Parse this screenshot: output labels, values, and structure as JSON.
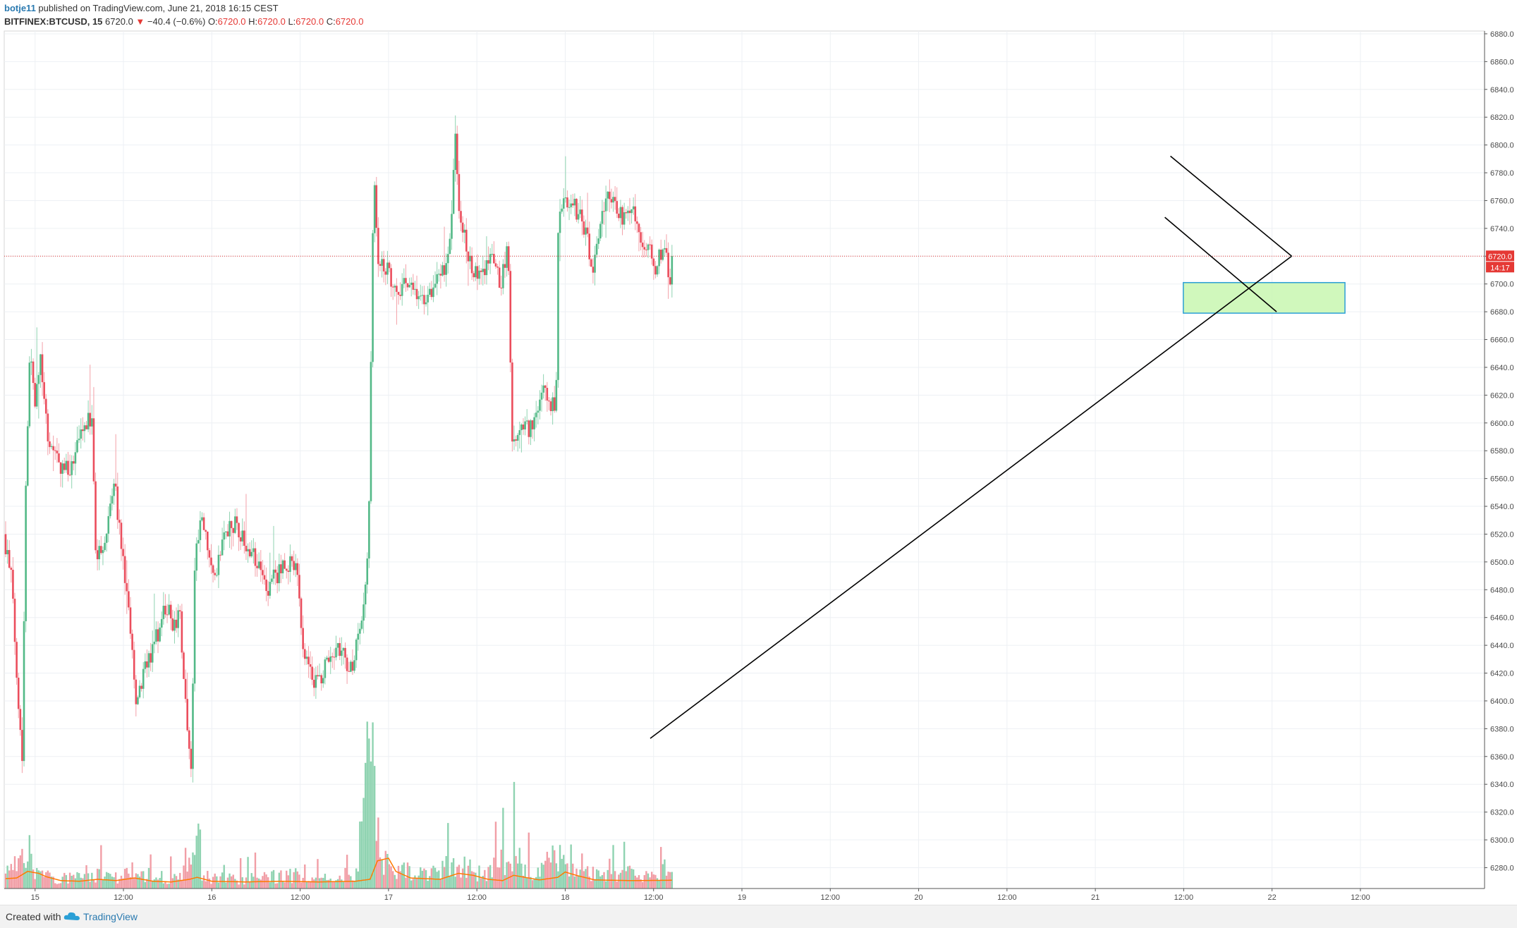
{
  "header": {
    "author": "botje11",
    "published": "published on TradingView.com, June 21, 2018 16:15 CEST",
    "symbol": "BITFINEX:BTCUSD, 15",
    "price": "6720.0",
    "arrow": "▼",
    "change": "−40.4 (−0.6%)",
    "open_label": "O:",
    "open": "6720.0",
    "high_label": "H:",
    "high": "6720.0",
    "low_label": "L:",
    "low": "6720.0",
    "close_label": "C:",
    "close": "6720.0"
  },
  "price_badge": "6720.0",
  "timer_badge": "14:17",
  "footer": {
    "created": "Created with",
    "brand": "TradingView",
    "logo_icon": "tradingview-cloud-icon"
  },
  "colors": {
    "up": "#53b987",
    "down": "#eb4d5c",
    "wick_up": "#8fd3b1",
    "wick_down": "#f3a0a8",
    "vol_up": "#8fd3b1",
    "vol_down": "#f19ea6",
    "vol_ma": "#ff7a00",
    "last_line": "#e53935",
    "zone_fill": "#c8f7b0",
    "zone_border": "#2a9fd6",
    "grid": "#edf0f4",
    "trendline": "#000000"
  },
  "chart_data": {
    "type": "candlestick",
    "symbol": "BITFINEX:BTCUSD",
    "interval": "15",
    "ylim": [
      6265,
      6882
    ],
    "y_ticks": [
      "6280.0",
      "6300.0",
      "6320.0",
      "6340.0",
      "6360.0",
      "6380.0",
      "6400.0",
      "6420.0",
      "6440.0",
      "6460.0",
      "6480.0",
      "6500.0",
      "6520.0",
      "6540.0",
      "6560.0",
      "6580.0",
      "6600.0",
      "6620.0",
      "6640.0",
      "6660.0",
      "6680.0",
      "6700.0",
      "6720.0",
      "6740.0",
      "6760.0",
      "6780.0",
      "6800.0",
      "6820.0",
      "6840.0",
      "6860.0",
      "6880.0"
    ],
    "x_ticks": [
      {
        "label": "15",
        "t": 16
      },
      {
        "label": "12:00",
        "t": 64
      },
      {
        "label": "16",
        "t": 112
      },
      {
        "label": "12:00",
        "t": 160
      },
      {
        "label": "17",
        "t": 208
      },
      {
        "label": "12:00",
        "t": 256
      },
      {
        "label": "18",
        "t": 304
      },
      {
        "label": "12:00",
        "t": 352
      },
      {
        "label": "19",
        "t": 400
      },
      {
        "label": "12:00",
        "t": 448
      },
      {
        "label": "20",
        "t": 496
      },
      {
        "label": "12:00",
        "t": 544
      },
      {
        "label": "21",
        "t": 592
      },
      {
        "label": "12:00",
        "t": 640
      },
      {
        "label": "22",
        "t": 688
      },
      {
        "label": "12:00",
        "t": 736
      }
    ],
    "last_bar_t": 662,
    "last_price": 6720.0,
    "keypoints": [
      [
        0,
        6520
      ],
      [
        4,
        6490
      ],
      [
        8,
        6400
      ],
      [
        10,
        6360
      ],
      [
        12,
        6560
      ],
      [
        14,
        6650
      ],
      [
        17,
        6615
      ],
      [
        20,
        6650
      ],
      [
        24,
        6590
      ],
      [
        30,
        6570
      ],
      [
        36,
        6565
      ],
      [
        42,
        6590
      ],
      [
        46,
        6605
      ],
      [
        48,
        6600
      ],
      [
        50,
        6500
      ],
      [
        54,
        6515
      ],
      [
        58,
        6540
      ],
      [
        60,
        6560
      ],
      [
        64,
        6510
      ],
      [
        68,
        6460
      ],
      [
        72,
        6400
      ],
      [
        76,
        6420
      ],
      [
        80,
        6435
      ],
      [
        84,
        6450
      ],
      [
        88,
        6470
      ],
      [
        92,
        6455
      ],
      [
        96,
        6460
      ],
      [
        98,
        6410
      ],
      [
        100,
        6380
      ],
      [
        102,
        6350
      ],
      [
        104,
        6510
      ],
      [
        108,
        6530
      ],
      [
        112,
        6500
      ],
      [
        116,
        6495
      ],
      [
        120,
        6520
      ],
      [
        126,
        6530
      ],
      [
        132,
        6510
      ],
      [
        138,
        6500
      ],
      [
        142,
        6480
      ],
      [
        148,
        6490
      ],
      [
        154,
        6500
      ],
      [
        160,
        6490
      ],
      [
        162,
        6445
      ],
      [
        166,
        6425
      ],
      [
        170,
        6410
      ],
      [
        174,
        6425
      ],
      [
        180,
        6430
      ],
      [
        184,
        6445
      ],
      [
        187,
        6415
      ],
      [
        190,
        6430
      ],
      [
        195,
        6455
      ],
      [
        198,
        6505
      ],
      [
        200,
        6705
      ],
      [
        201,
        6790
      ],
      [
        203,
        6720
      ],
      [
        208,
        6710
      ],
      [
        214,
        6695
      ],
      [
        220,
        6700
      ],
      [
        226,
        6685
      ],
      [
        232,
        6695
      ],
      [
        238,
        6705
      ],
      [
        243,
        6735
      ],
      [
        245,
        6810
      ],
      [
        247,
        6760
      ],
      [
        252,
        6720
      ],
      [
        258,
        6705
      ],
      [
        264,
        6720
      ],
      [
        270,
        6700
      ],
      [
        274,
        6730
      ],
      [
        276,
        6580
      ],
      [
        280,
        6600
      ],
      [
        286,
        6595
      ],
      [
        290,
        6615
      ],
      [
        294,
        6625
      ],
      [
        297,
        6610
      ],
      [
        300,
        6615
      ],
      [
        301,
        6740
      ],
      [
        304,
        6760
      ],
      [
        310,
        6755
      ],
      [
        316,
        6740
      ],
      [
        320,
        6710
      ],
      [
        324,
        6745
      ],
      [
        328,
        6760
      ],
      [
        332,
        6755
      ],
      [
        338,
        6745
      ],
      [
        342,
        6755
      ],
      [
        346,
        6730
      ],
      [
        350,
        6730
      ],
      [
        354,
        6710
      ],
      [
        358,
        6728
      ],
      [
        362,
        6705
      ]
    ],
    "volume_keypoints": [
      [
        0,
        120
      ],
      [
        12,
        340
      ],
      [
        18,
        120
      ],
      [
        30,
        80
      ],
      [
        50,
        110
      ],
      [
        60,
        90
      ],
      [
        70,
        150
      ],
      [
        80,
        100
      ],
      [
        90,
        90
      ],
      [
        102,
        200
      ],
      [
        110,
        90
      ],
      [
        130,
        80
      ],
      [
        150,
        110
      ],
      [
        170,
        80
      ],
      [
        190,
        90
      ],
      [
        199,
        1200
      ],
      [
        202,
        500
      ],
      [
        206,
        220
      ],
      [
        215,
        140
      ],
      [
        230,
        120
      ],
      [
        245,
        200
      ],
      [
        260,
        110
      ],
      [
        276,
        300
      ],
      [
        285,
        120
      ],
      [
        300,
        250
      ],
      [
        304,
        180
      ],
      [
        320,
        110
      ],
      [
        340,
        120
      ],
      [
        362,
        120
      ]
    ],
    "volume_ma_keypoints": [
      [
        0,
        150
      ],
      [
        6,
        160
      ],
      [
        12,
        260
      ],
      [
        18,
        230
      ],
      [
        22,
        180
      ],
      [
        30,
        120
      ],
      [
        40,
        110
      ],
      [
        50,
        140
      ],
      [
        60,
        120
      ],
      [
        70,
        160
      ],
      [
        80,
        110
      ],
      [
        90,
        100
      ],
      [
        100,
        140
      ],
      [
        104,
        170
      ],
      [
        112,
        110
      ],
      [
        130,
        100
      ],
      [
        150,
        110
      ],
      [
        170,
        100
      ],
      [
        190,
        110
      ],
      [
        198,
        140
      ],
      [
        202,
        420
      ],
      [
        208,
        460
      ],
      [
        212,
        260
      ],
      [
        220,
        160
      ],
      [
        236,
        140
      ],
      [
        246,
        230
      ],
      [
        254,
        200
      ],
      [
        262,
        140
      ],
      [
        270,
        120
      ],
      [
        276,
        200
      ],
      [
        282,
        170
      ],
      [
        290,
        130
      ],
      [
        300,
        170
      ],
      [
        304,
        250
      ],
      [
        310,
        200
      ],
      [
        320,
        130
      ],
      [
        340,
        120
      ],
      [
        362,
        125
      ]
    ],
    "drawings": {
      "uptrend_line": [
        [
          0.4364,
          6373
        ],
        [
          0.8697,
          6720
        ]
      ],
      "channel_upper": [
        [
          0.7878,
          6792
        ],
        [
          0.8697,
          6720
        ]
      ],
      "channel_lower": [
        [
          0.784,
          6748
        ],
        [
          0.8595,
          6680
        ]
      ],
      "zone": {
        "t_from": 0.7965,
        "t_to": 0.9057,
        "price_high": 6701,
        "price_low": 6679
      }
    }
  }
}
